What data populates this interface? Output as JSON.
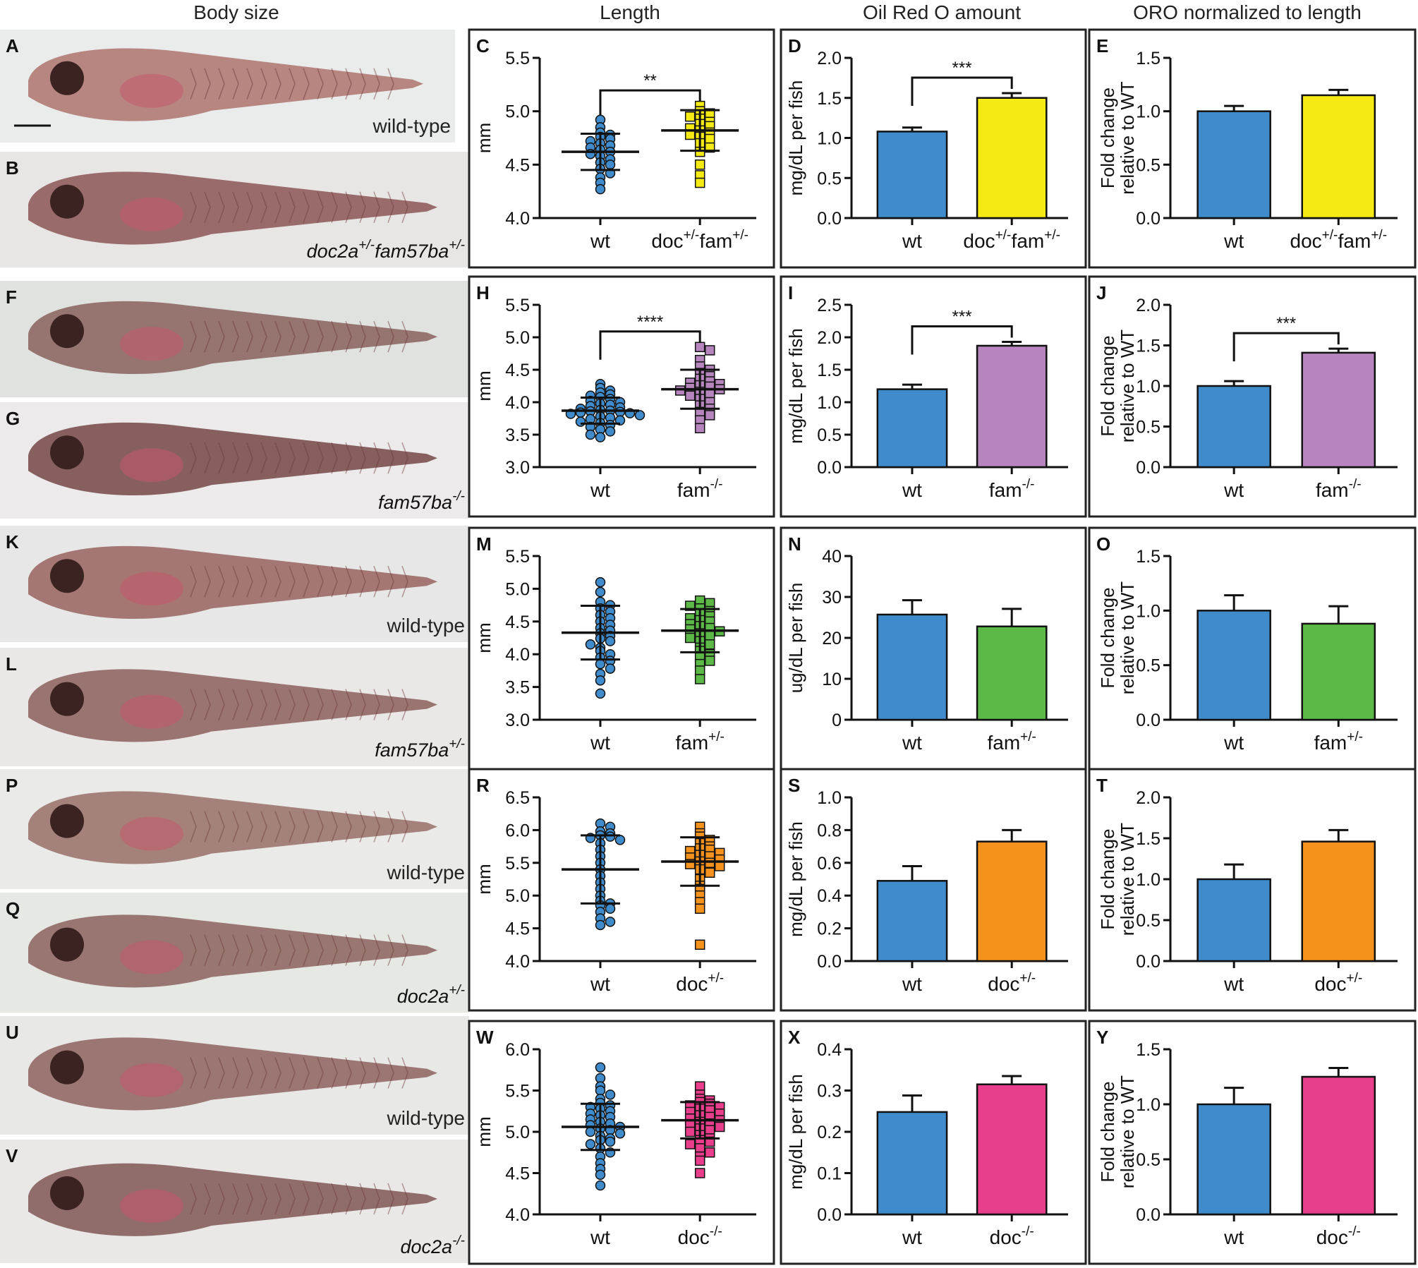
{
  "column_titles": [
    "Body size",
    "Length",
    "Oil Red O amount",
    "ORO normalized to length"
  ],
  "colors": {
    "wt": "#3f8bcb",
    "doc_fam": "#f5ea14",
    "fam_hom": "#b685bd",
    "fam_het": "#5cb947",
    "doc_het": "#f5921e",
    "doc_hom": "#e83e8c"
  },
  "images": [
    {
      "letter": "A",
      "label": "wild-type",
      "label_italic": false,
      "has_scale_bar": true
    },
    {
      "letter": "B",
      "label_parts": [
        [
          "doc2a",
          "+/-"
        ],
        [
          " fam57ba",
          "+/-"
        ]
      ],
      "label_italic": true
    },
    {
      "letter": "F",
      "label": "",
      "label_italic": false
    },
    {
      "letter": "G",
      "label_parts": [
        [
          "fam57ba",
          "-/-"
        ]
      ],
      "label_italic": true
    },
    {
      "letter": "K",
      "label": "wild-type",
      "label_italic": false
    },
    {
      "letter": "L",
      "label_parts": [
        [
          "fam57ba",
          "+/-"
        ]
      ],
      "label_italic": true
    },
    {
      "letter": "P",
      "label": "wild-type",
      "label_italic": false
    },
    {
      "letter": "Q",
      "label_parts": [
        [
          "doc2a",
          "+/-"
        ]
      ],
      "label_italic": true
    },
    {
      "letter": "U",
      "label": "wild-type",
      "label_italic": false
    },
    {
      "letter": "V",
      "label_parts": [
        [
          "doc2a",
          "-/-"
        ]
      ],
      "label_italic": true
    }
  ],
  "chart_data": [
    {
      "panel": "C",
      "type": "scatter",
      "ylabel": "mm",
      "ylim": [
        4.0,
        5.5
      ],
      "yticks": [
        "4.0",
        "4.5",
        "5.0",
        "5.5"
      ],
      "categories": [
        [
          "wt",
          ""
        ],
        [
          "doc+/-fam+/-"
        ]
      ],
      "cat_label_parts": [
        [
          [
            "wt",
            ""
          ]
        ],
        [
          [
            "doc",
            "+/-"
          ],
          [
            "fam",
            "+/-"
          ]
        ]
      ],
      "series": [
        {
          "color_key": "wt",
          "marker": "circle",
          "mean": 4.62,
          "sd": 0.17,
          "values": [
            4.92,
            4.85,
            4.8,
            4.78,
            4.76,
            4.74,
            4.72,
            4.7,
            4.68,
            4.66,
            4.64,
            4.62,
            4.6,
            4.58,
            4.55,
            4.52,
            4.5,
            4.46,
            4.42,
            4.38,
            4.33,
            4.27
          ]
        },
        {
          "color_key": "doc_fam",
          "marker": "square",
          "mean": 4.82,
          "sd": 0.19,
          "values": [
            5.05,
            5.0,
            4.98,
            4.95,
            4.93,
            4.9,
            4.88,
            4.86,
            4.84,
            4.82,
            4.8,
            4.78,
            4.76,
            4.74,
            4.7,
            4.66,
            4.62,
            4.5,
            4.4,
            4.33
          ]
        }
      ],
      "significance": "**"
    },
    {
      "panel": "D",
      "type": "bar",
      "ylabel": "mg/dL per fish",
      "ylim": [
        0,
        2.0
      ],
      "yticks": [
        "0.0",
        "0.5",
        "1.0",
        "1.5",
        "2.0"
      ],
      "cat_label_parts": [
        [
          [
            "wt",
            ""
          ]
        ],
        [
          [
            "doc",
            "+/-"
          ],
          [
            "fam",
            "+/-"
          ]
        ]
      ],
      "bars": [
        {
          "color_key": "wt",
          "value": 1.08,
          "err": 0.05
        },
        {
          "color_key": "doc_fam",
          "value": 1.5,
          "err": 0.06
        }
      ],
      "significance": "***"
    },
    {
      "panel": "E",
      "type": "bar",
      "ylabel": [
        "Fold change",
        "relative to WT"
      ],
      "ylim": [
        0,
        1.5
      ],
      "yticks": [
        "0.0",
        "0.5",
        "1.0",
        "1.5"
      ],
      "cat_label_parts": [
        [
          [
            "wt",
            ""
          ]
        ],
        [
          [
            "doc",
            "+/-"
          ],
          [
            "fam",
            "+/-"
          ]
        ]
      ],
      "bars": [
        {
          "color_key": "wt",
          "value": 1.0,
          "err": 0.05
        },
        {
          "color_key": "doc_fam",
          "value": 1.15,
          "err": 0.05
        }
      ],
      "significance": ""
    },
    {
      "panel": "H",
      "type": "scatter",
      "ylabel": "mm",
      "ylim": [
        3.0,
        5.5
      ],
      "yticks": [
        "3.0",
        "3.5",
        "4.0",
        "4.5",
        "5.0",
        "5.5"
      ],
      "cat_label_parts": [
        [
          [
            "wt",
            ""
          ]
        ],
        [
          [
            "fam",
            "-/-"
          ]
        ]
      ],
      "series": [
        {
          "color_key": "wt",
          "marker": "circle",
          "mean": 3.87,
          "sd": 0.2,
          "values": [
            4.28,
            4.22,
            4.18,
            4.15,
            4.12,
            4.1,
            4.08,
            4.05,
            4.02,
            4.0,
            3.98,
            3.96,
            3.94,
            3.92,
            3.9,
            3.88,
            3.87,
            3.86,
            3.85,
            3.84,
            3.83,
            3.82,
            3.8,
            3.78,
            3.76,
            3.74,
            3.72,
            3.7,
            3.68,
            3.65,
            3.62,
            3.58,
            3.55,
            3.5,
            3.46
          ]
        },
        {
          "color_key": "fam_hom",
          "marker": "square",
          "mean": 4.2,
          "sd": 0.3,
          "values": [
            4.85,
            4.8,
            4.65,
            4.55,
            4.5,
            4.45,
            4.4,
            4.36,
            4.32,
            4.3,
            4.28,
            4.26,
            4.24,
            4.22,
            4.2,
            4.18,
            4.16,
            4.14,
            4.1,
            4.05,
            4.0,
            3.95,
            3.9,
            3.85,
            3.8,
            3.72,
            3.6
          ]
        }
      ],
      "significance": "****"
    },
    {
      "panel": "I",
      "type": "bar",
      "ylabel": "mg/dL per fish",
      "ylim": [
        0,
        2.5
      ],
      "yticks": [
        "0.0",
        "0.5",
        "1.0",
        "1.5",
        "2.0",
        "2.5"
      ],
      "cat_label_parts": [
        [
          [
            "wt",
            ""
          ]
        ],
        [
          [
            "fam",
            "-/-"
          ]
        ]
      ],
      "bars": [
        {
          "color_key": "wt",
          "value": 1.2,
          "err": 0.07
        },
        {
          "color_key": "fam_hom",
          "value": 1.87,
          "err": 0.06
        }
      ],
      "significance": "***"
    },
    {
      "panel": "J",
      "type": "bar",
      "ylabel": [
        "Fold change",
        "relative to WT"
      ],
      "ylim": [
        0,
        2.0
      ],
      "yticks": [
        "0.0",
        "0.5",
        "1.0",
        "1.5",
        "2.0"
      ],
      "cat_label_parts": [
        [
          [
            "wt",
            ""
          ]
        ],
        [
          [
            "fam",
            "-/-"
          ]
        ]
      ],
      "bars": [
        {
          "color_key": "wt",
          "value": 1.0,
          "err": 0.06
        },
        {
          "color_key": "fam_hom",
          "value": 1.41,
          "err": 0.05
        }
      ],
      "significance": "***"
    },
    {
      "panel": "M",
      "type": "scatter",
      "ylabel": "mm",
      "ylim": [
        3.0,
        5.5
      ],
      "yticks": [
        "3.0",
        "3.5",
        "4.0",
        "4.5",
        "5.0",
        "5.5"
      ],
      "cat_label_parts": [
        [
          [
            "wt",
            ""
          ]
        ],
        [
          [
            "fam",
            "+/-"
          ]
        ]
      ],
      "series": [
        {
          "color_key": "wt",
          "marker": "circle",
          "mean": 4.33,
          "sd": 0.41,
          "values": [
            5.1,
            4.95,
            4.8,
            4.75,
            4.7,
            4.65,
            4.6,
            4.55,
            4.5,
            4.45,
            4.4,
            4.36,
            4.32,
            4.28,
            4.24,
            4.2,
            4.15,
            4.1,
            4.05,
            4.0,
            3.95,
            3.9,
            3.85,
            3.78,
            3.7,
            3.6,
            3.4
          ]
        },
        {
          "color_key": "fam_het",
          "marker": "square",
          "mean": 4.36,
          "sd": 0.33,
          "values": [
            4.82,
            4.78,
            4.74,
            4.7,
            4.66,
            4.62,
            4.58,
            4.55,
            4.52,
            4.5,
            4.46,
            4.43,
            4.4,
            4.38,
            4.35,
            4.32,
            4.28,
            4.25,
            4.2,
            4.15,
            4.1,
            4.05,
            4.0,
            3.95,
            3.9,
            3.85,
            3.75,
            3.62
          ]
        }
      ],
      "significance": ""
    },
    {
      "panel": "N",
      "type": "bar",
      "ylabel": "ug/dL per fish",
      "ylim": [
        0,
        40
      ],
      "yticks": [
        "0",
        "10",
        "20",
        "30",
        "40"
      ],
      "cat_label_parts": [
        [
          [
            "wt",
            ""
          ]
        ],
        [
          [
            "fam",
            "+/-"
          ]
        ]
      ],
      "bars": [
        {
          "color_key": "wt",
          "value": 25.7,
          "err": 3.5
        },
        {
          "color_key": "fam_het",
          "value": 22.8,
          "err": 4.3
        }
      ],
      "significance": ""
    },
    {
      "panel": "O",
      "type": "bar",
      "ylabel": [
        "Fold change",
        "relative to WT"
      ],
      "ylim": [
        0,
        1.5
      ],
      "yticks": [
        "0.0",
        "0.5",
        "1.0",
        "1.5"
      ],
      "cat_label_parts": [
        [
          [
            "wt",
            ""
          ]
        ],
        [
          [
            "fam",
            "+/-"
          ]
        ]
      ],
      "bars": [
        {
          "color_key": "wt",
          "value": 1.0,
          "err": 0.14
        },
        {
          "color_key": "fam_het",
          "value": 0.88,
          "err": 0.16
        }
      ],
      "significance": ""
    },
    {
      "panel": "R",
      "type": "scatter",
      "ylabel": "mm",
      "ylim": [
        4.0,
        6.5
      ],
      "yticks": [
        "4.0",
        "4.5",
        "5.0",
        "5.5",
        "6.0",
        "6.5"
      ],
      "cat_label_parts": [
        [
          [
            "wt",
            ""
          ]
        ],
        [
          [
            "doc",
            "+/-"
          ]
        ]
      ],
      "series": [
        {
          "color_key": "wt",
          "marker": "circle",
          "mean": 5.4,
          "sd": 0.52,
          "values": [
            6.1,
            6.05,
            5.98,
            5.95,
            5.92,
            5.9,
            5.88,
            5.85,
            5.8,
            5.7,
            5.6,
            5.5,
            5.4,
            5.3,
            5.2,
            5.1,
            5.0,
            4.92,
            4.88,
            4.85,
            4.8,
            4.75,
            4.65,
            4.6,
            4.55
          ]
        },
        {
          "color_key": "doc_het",
          "marker": "square",
          "mean": 5.52,
          "sd": 0.37,
          "values": [
            6.05,
            5.95,
            5.9,
            5.85,
            5.8,
            5.75,
            5.72,
            5.7,
            5.68,
            5.65,
            5.62,
            5.6,
            5.58,
            5.55,
            5.52,
            5.5,
            5.48,
            5.45,
            5.4,
            5.35,
            5.25,
            5.15,
            5.1,
            5.0,
            4.9,
            4.8,
            4.25
          ]
        }
      ],
      "significance": ""
    },
    {
      "panel": "S",
      "type": "bar",
      "ylabel": "mg/dL per fish",
      "ylim": [
        0,
        1.0
      ],
      "yticks": [
        "0.0",
        "0.2",
        "0.4",
        "0.6",
        "0.8",
        "1.0"
      ],
      "cat_label_parts": [
        [
          [
            "wt",
            ""
          ]
        ],
        [
          [
            "doc",
            "+/-"
          ]
        ]
      ],
      "bars": [
        {
          "color_key": "wt",
          "value": 0.49,
          "err": 0.09
        },
        {
          "color_key": "doc_het",
          "value": 0.73,
          "err": 0.07
        }
      ],
      "significance": ""
    },
    {
      "panel": "T",
      "type": "bar",
      "ylabel": [
        "Fold change",
        "relative to WT"
      ],
      "ylim": [
        0,
        2.0
      ],
      "yticks": [
        "0.0",
        "0.5",
        "1.0",
        "1.5",
        "2.0"
      ],
      "cat_label_parts": [
        [
          [
            "wt",
            ""
          ]
        ],
        [
          [
            "doc",
            "+/-"
          ]
        ]
      ],
      "bars": [
        {
          "color_key": "wt",
          "value": 1.0,
          "err": 0.18
        },
        {
          "color_key": "doc_het",
          "value": 1.46,
          "err": 0.14
        }
      ],
      "significance": ""
    },
    {
      "panel": "W",
      "type": "scatter",
      "ylabel": "mm",
      "ylim": [
        4.0,
        6.0
      ],
      "yticks": [
        "4.0",
        "4.5",
        "5.0",
        "5.5",
        "6.0"
      ],
      "cat_label_parts": [
        [
          [
            "wt",
            ""
          ]
        ],
        [
          [
            "doc",
            "-/-"
          ]
        ]
      ],
      "series": [
        {
          "color_key": "wt",
          "marker": "circle",
          "mean": 5.06,
          "sd": 0.28,
          "values": [
            5.78,
            5.65,
            5.55,
            5.5,
            5.45,
            5.4,
            5.35,
            5.32,
            5.3,
            5.28,
            5.25,
            5.22,
            5.2,
            5.18,
            5.15,
            5.12,
            5.1,
            5.08,
            5.06,
            5.04,
            5.02,
            5.0,
            4.98,
            4.95,
            4.92,
            4.9,
            4.88,
            4.85,
            4.8,
            4.75,
            4.7,
            4.62,
            4.55,
            4.48,
            4.35
          ]
        },
        {
          "color_key": "doc_hom",
          "marker": "square",
          "mean": 5.14,
          "sd": 0.22,
          "values": [
            5.55,
            5.45,
            5.4,
            5.38,
            5.36,
            5.34,
            5.32,
            5.3,
            5.28,
            5.26,
            5.24,
            5.22,
            5.2,
            5.18,
            5.16,
            5.14,
            5.12,
            5.1,
            5.08,
            5.06,
            5.04,
            5.02,
            5.0,
            4.96,
            4.92,
            4.9,
            4.88,
            4.85,
            4.8,
            4.75,
            4.7,
            4.65,
            4.5
          ]
        }
      ],
      "significance": ""
    },
    {
      "panel": "X",
      "type": "bar",
      "ylabel": "mg/dL per fish",
      "ylim": [
        0,
        0.4
      ],
      "yticks": [
        "0.0",
        "0.1",
        "0.2",
        "0.3",
        "0.4"
      ],
      "cat_label_parts": [
        [
          [
            "wt",
            ""
          ]
        ],
        [
          [
            "doc",
            "-/-"
          ]
        ]
      ],
      "bars": [
        {
          "color_key": "wt",
          "value": 0.248,
          "err": 0.04
        },
        {
          "color_key": "doc_hom",
          "value": 0.315,
          "err": 0.02
        }
      ],
      "significance": ""
    },
    {
      "panel": "Y",
      "type": "bar",
      "ylabel": [
        "Fold change",
        "relative to WT"
      ],
      "ylim": [
        0,
        1.5
      ],
      "yticks": [
        "0.0",
        "0.5",
        "1.0",
        "1.5"
      ],
      "cat_label_parts": [
        [
          [
            "wt",
            ""
          ]
        ],
        [
          [
            "doc",
            "-/-"
          ]
        ]
      ],
      "bars": [
        {
          "color_key": "wt",
          "value": 1.0,
          "err": 0.15
        },
        {
          "color_key": "doc_hom",
          "value": 1.25,
          "err": 0.08
        }
      ],
      "significance": ""
    }
  ]
}
